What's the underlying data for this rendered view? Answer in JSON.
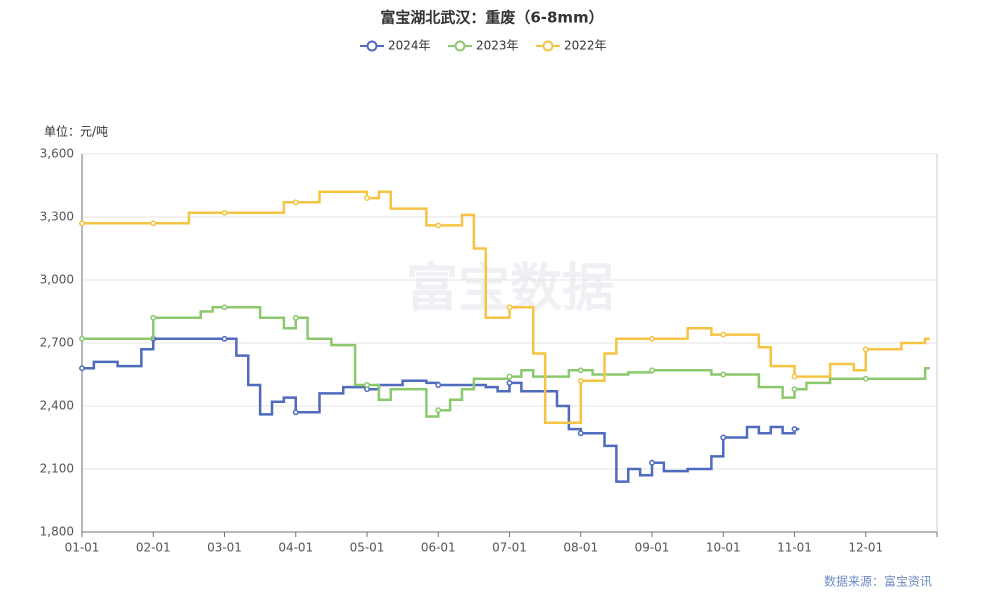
{
  "chart_data": {
    "type": "line",
    "step": true,
    "title": "富宝湖北武汉：重废（6-8mm）",
    "y_unit": "单位：元/吨",
    "source": "数据来源：富宝资讯",
    "watermark": "富宝数据",
    "categories": [
      "01-01",
      null,
      null,
      null,
      null,
      null,
      "02-01",
      null,
      null,
      null,
      null,
      null,
      "03-01",
      null,
      null,
      null,
      null,
      null,
      "04-01",
      null,
      null,
      null,
      null,
      null,
      "05-01",
      null,
      null,
      null,
      null,
      null,
      "06-01",
      null,
      null,
      null,
      null,
      null,
      "07-01",
      null,
      null,
      null,
      null,
      null,
      "08-01",
      null,
      null,
      null,
      null,
      null,
      "09-01",
      null,
      null,
      null,
      null,
      null,
      "10-01",
      null,
      null,
      null,
      null,
      null,
      "11-01",
      null,
      null,
      null,
      null,
      null,
      "12-01",
      null,
      null,
      null,
      null,
      null
    ],
    "ylim": [
      1800,
      3600
    ],
    "yticks": [
      {
        "value": 1800,
        "label": "1,800"
      },
      {
        "value": 2100,
        "label": "2,100"
      },
      {
        "value": 2400,
        "label": "2,400"
      },
      {
        "value": 2700,
        "label": "2,700"
      },
      {
        "value": 3000,
        "label": "3,000"
      },
      {
        "value": 3300,
        "label": "3,300"
      },
      {
        "value": 3600,
        "label": "3,600"
      }
    ],
    "grid": true,
    "legend": "top",
    "series": [
      {
        "name": "2024年",
        "color": "#4f6bbd",
        "values": [
          2580,
          2610,
          2610,
          2590,
          2590,
          2670,
          2720,
          2720,
          2720,
          2720,
          2720,
          2720,
          2720,
          2640,
          2500,
          2360,
          2420,
          2440,
          2370,
          2370,
          2460,
          2460,
          2490,
          2490,
          2480,
          2500,
          2500,
          2520,
          2520,
          2510,
          2500,
          2500,
          2500,
          2500,
          2490,
          2470,
          2510,
          2470,
          2470,
          2470,
          2400,
          2290,
          2270,
          2270,
          2210,
          2040,
          2100,
          2070,
          2130,
          2090,
          2090,
          2100,
          2100,
          2160,
          2250,
          2250,
          2300,
          2270,
          2300,
          2270,
          2290,
          null,
          null,
          null,
          null,
          null,
          null,
          null,
          null,
          null,
          null,
          null
        ]
      },
      {
        "name": "2023年",
        "color": "#8cc96e",
        "values": [
          2720,
          2720,
          2720,
          2720,
          2720,
          2720,
          2820,
          2820,
          2820,
          2820,
          2850,
          2870,
          2870,
          2870,
          2870,
          2820,
          2820,
          2770,
          2820,
          2720,
          2720,
          2690,
          2690,
          2500,
          2500,
          2430,
          2480,
          2480,
          2480,
          2350,
          2380,
          2430,
          2480,
          2530,
          2530,
          2530,
          2540,
          2570,
          2540,
          2540,
          2540,
          2570,
          2570,
          2550,
          2550,
          2550,
          2560,
          2560,
          2570,
          2570,
          2570,
          2570,
          2570,
          2550,
          2550,
          2550,
          2550,
          2490,
          2490,
          2440,
          2480,
          2510,
          2510,
          2530,
          2530,
          2530,
          2530,
          2530,
          2530,
          2530,
          2530,
          2580
        ]
      },
      {
        "name": "2022年",
        "color": "#f5c445",
        "values": [
          3270,
          3270,
          3270,
          3270,
          3270,
          3270,
          3270,
          3270,
          3270,
          3320,
          3320,
          3320,
          3320,
          3320,
          3320,
          3320,
          3320,
          3370,
          3370,
          3370,
          3420,
          3420,
          3420,
          3420,
          3390,
          3420,
          3340,
          3340,
          3340,
          3260,
          3260,
          3260,
          3310,
          3150,
          2820,
          2820,
          2870,
          2870,
          2650,
          2320,
          2320,
          2320,
          2520,
          2520,
          2650,
          2720,
          2720,
          2720,
          2720,
          2720,
          2720,
          2770,
          2770,
          2740,
          2740,
          2740,
          2740,
          2680,
          2590,
          2590,
          2540,
          2540,
          2540,
          2600,
          2600,
          2570,
          2670,
          2670,
          2670,
          2700,
          2700,
          2720
        ]
      }
    ]
  }
}
